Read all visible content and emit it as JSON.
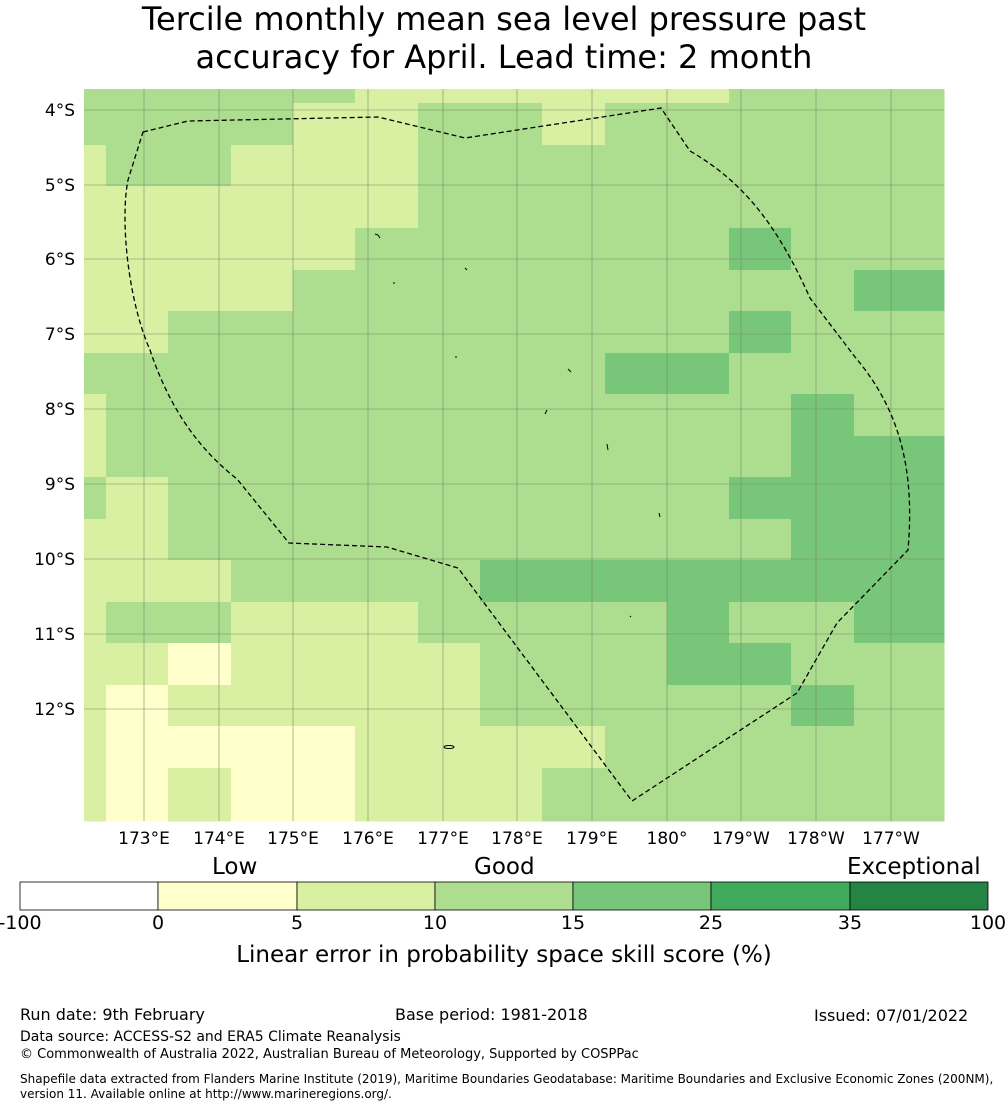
{
  "title": {
    "line1": "Tercile monthly mean sea level pressure past",
    "line2": "accuracy for April. Lead time: 2 month"
  },
  "map": {
    "lat_labels": [
      "4°S",
      "5°S",
      "6°S",
      "7°S",
      "8°S",
      "9°S",
      "10°S",
      "11°S",
      "12°S"
    ],
    "lon_labels": [
      "173°E",
      "174°E",
      "175°E",
      "176°E",
      "177°E",
      "178°E",
      "179°E",
      "180°",
      "179°W",
      "178°W",
      "177°W"
    ],
    "skill_grid": [
      [
        12,
        12,
        12,
        12,
        12,
        7,
        7,
        7,
        7,
        7,
        7,
        12,
        12,
        12
      ],
      [
        12,
        12,
        12,
        12,
        7,
        7,
        12,
        12,
        7,
        12,
        12,
        12,
        12,
        12
      ],
      [
        7,
        12,
        12,
        7,
        7,
        7,
        12,
        12,
        12,
        12,
        12,
        12,
        12,
        12
      ],
      [
        7,
        7,
        7,
        7,
        7,
        7,
        12,
        12,
        12,
        12,
        12,
        12,
        12,
        12
      ],
      [
        7,
        7,
        7,
        7,
        7,
        12,
        12,
        12,
        12,
        12,
        12,
        20,
        12,
        12
      ],
      [
        7,
        7,
        7,
        7,
        12,
        12,
        12,
        12,
        12,
        12,
        12,
        12,
        12,
        20
      ],
      [
        7,
        7,
        12,
        12,
        12,
        12,
        12,
        12,
        12,
        12,
        12,
        20,
        12,
        12
      ],
      [
        12,
        12,
        12,
        12,
        12,
        12,
        12,
        12,
        12,
        20,
        20,
        12,
        12,
        12
      ],
      [
        7,
        12,
        12,
        12,
        12,
        12,
        12,
        12,
        12,
        12,
        12,
        12,
        20,
        12
      ],
      [
        7,
        12,
        12,
        12,
        12,
        12,
        12,
        12,
        12,
        12,
        12,
        12,
        20,
        20
      ],
      [
        12,
        7,
        12,
        12,
        12,
        12,
        12,
        12,
        12,
        12,
        12,
        20,
        20,
        20
      ],
      [
        7,
        7,
        12,
        12,
        12,
        12,
        12,
        12,
        12,
        12,
        12,
        12,
        20,
        20
      ],
      [
        7,
        7,
        7,
        12,
        12,
        12,
        12,
        20,
        20,
        20,
        20,
        20,
        20,
        20
      ],
      [
        7,
        12,
        12,
        7,
        7,
        7,
        12,
        12,
        12,
        12,
        20,
        12,
        12,
        20
      ],
      [
        7,
        7,
        3,
        7,
        7,
        7,
        7,
        12,
        12,
        12,
        20,
        20,
        12,
        12
      ],
      [
        7,
        3,
        7,
        7,
        7,
        7,
        7,
        12,
        12,
        12,
        12,
        12,
        20,
        12
      ],
      [
        7,
        3,
        3,
        3,
        3,
        7,
        7,
        7,
        7,
        12,
        12,
        12,
        12,
        12
      ],
      [
        7,
        3,
        7,
        3,
        3,
        7,
        7,
        7,
        12,
        12,
        12,
        12,
        12,
        12
      ]
    ]
  },
  "legend": {
    "categories": [
      "Low",
      "Good",
      "Exceptional"
    ],
    "ticks": [
      "-100",
      "0",
      "5",
      "10",
      "15",
      "25",
      "35",
      "100"
    ],
    "colors": [
      "#ffffff",
      "#ffffcc",
      "#d9f0a3",
      "#addd8e",
      "#78c679",
      "#41ab5d",
      "#238443"
    ],
    "label": "Linear error in probability space skill score (%)"
  },
  "footer": {
    "run_date": "Run date: 9th February",
    "base_period": "Base period: 1981-2018",
    "issued": "Issued: 07/01/2022",
    "data_source": "Data source: ACCESS-S2 and ERA5 Climate Reanalysis",
    "copyright": "© Commonwealth of Australia 2022, Australian Bureau of Meteorology, Supported by COSPPac",
    "shapefile": "Shapefile data extracted from Flanders Marine Institute (2019), Maritime Boundaries Geodatabase: Maritime Boundaries and Exclusive Economic Zones (200NM), version 11. Available online at http://www.marineregions.org/."
  }
}
